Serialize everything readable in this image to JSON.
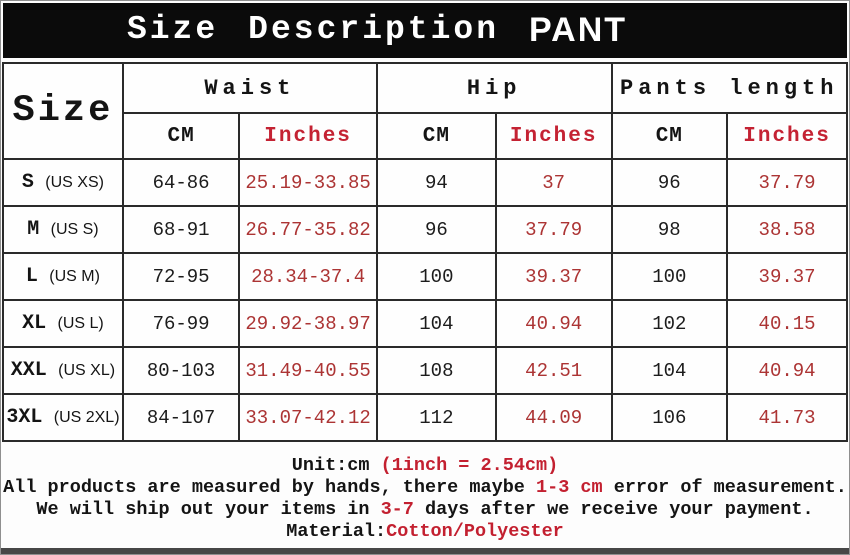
{
  "title": {
    "word1": "Size",
    "word2": "Description",
    "word3": "PANT"
  },
  "table": {
    "size_header": "Size",
    "group_headers": {
      "waist": "Waist",
      "hip": "Hip",
      "length": "Pants length"
    },
    "unit_cm": "CM",
    "unit_inches": "Inches",
    "rows": [
      {
        "size": "S",
        "us": "(US XS)",
        "waist_cm": "64-86",
        "waist_in": "25.19-33.85",
        "hip_cm": "94",
        "hip_in": "37",
        "len_cm": "96",
        "len_in": "37.79"
      },
      {
        "size": "M",
        "us": "(US S)",
        "waist_cm": "68-91",
        "waist_in": "26.77-35.82",
        "hip_cm": "96",
        "hip_in": "37.79",
        "len_cm": "98",
        "len_in": "38.58"
      },
      {
        "size": "L",
        "us": "(US M)",
        "waist_cm": "72-95",
        "waist_in": "28.34-37.4",
        "hip_cm": "100",
        "hip_in": "39.37",
        "len_cm": "100",
        "len_in": "39.37"
      },
      {
        "size": "XL",
        "us": "(US L)",
        "waist_cm": "76-99",
        "waist_in": "29.92-38.97",
        "hip_cm": "104",
        "hip_in": "40.94",
        "len_cm": "102",
        "len_in": "40.15"
      },
      {
        "size": "XXL",
        "us": "(US XL)",
        "waist_cm": "80-103",
        "waist_in": "31.49-40.55",
        "hip_cm": "108",
        "hip_in": "42.51",
        "len_cm": "104",
        "len_in": "40.94"
      },
      {
        "size": "3XL",
        "us": "(US 2XL)",
        "waist_cm": "84-107",
        "waist_in": "33.07-42.12",
        "hip_cm": "112",
        "hip_in": "44.09",
        "len_cm": "106",
        "len_in": "41.73"
      }
    ]
  },
  "footer": {
    "unit_black": "Unit:cm ",
    "unit_red": "(1inch = 2.54cm)",
    "line1_a": "All products are measured by hands, there maybe ",
    "line1_red": "1-3 cm",
    "line1_b": " error of measurement.",
    "line2_a": "We will ship out your items in ",
    "line2_red": "3-7",
    "line2_b": " days after we receive your payment.",
    "material_black": "Material:",
    "material_red": "Cotton/Polyester"
  },
  "colors": {
    "red_header": "#c42233",
    "red_data": "#ac3434",
    "red_footer": "#c32030",
    "bar_bg": "#0b0b0b",
    "border_dark": "#2a2a2a",
    "text_black": "#141414"
  }
}
